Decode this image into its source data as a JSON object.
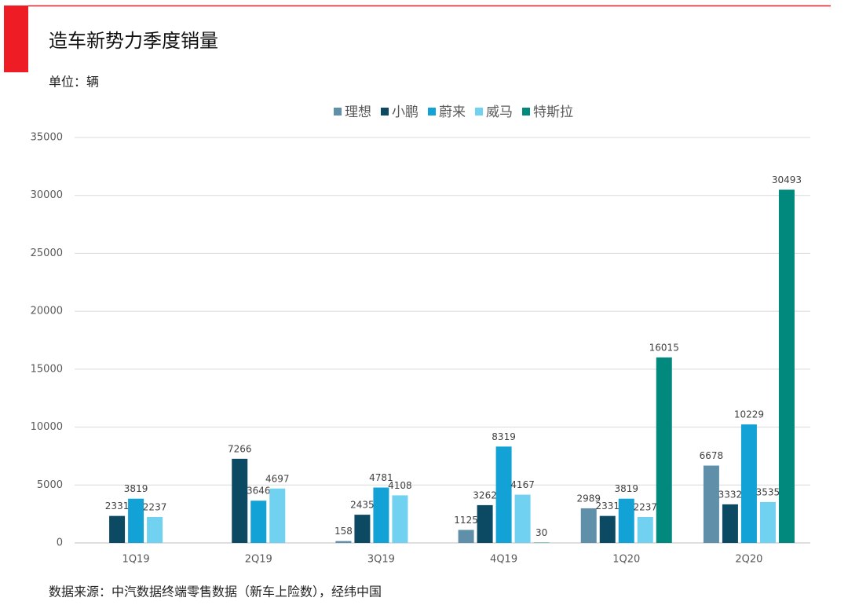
{
  "chart_data": {
    "type": "bar",
    "title": "造车新势力季度销量",
    "subtitle": "单位：辆",
    "source": "数据来源：中汽数据终端零售数据（新车上险数），经纬中国",
    "categories": [
      "1Q19",
      "2Q19",
      "3Q19",
      "4Q19",
      "1Q20",
      "2Q20"
    ],
    "series": [
      {
        "name": "理想",
        "color": "#5f8fa9",
        "values": [
          null,
          null,
          158,
          1125,
          2989,
          6678
        ]
      },
      {
        "name": "小鹏",
        "color": "#0c4a64",
        "values": [
          2331,
          7266,
          2435,
          3262,
          2331,
          3332
        ]
      },
      {
        "name": "蔚来",
        "color": "#13a2d6",
        "values": [
          3819,
          3646,
          4781,
          8319,
          3819,
          10229
        ]
      },
      {
        "name": "威马",
        "color": "#70d1f1",
        "values": [
          2237,
          4697,
          4108,
          4167,
          2237,
          3535
        ]
      },
      {
        "name": "特斯拉",
        "color": "#00897c",
        "values": [
          null,
          null,
          null,
          30,
          16015,
          30493
        ]
      }
    ],
    "ylim": [
      0,
      35000
    ],
    "yticks": [
      0,
      5000,
      10000,
      15000,
      20000,
      25000,
      30000,
      35000
    ],
    "grid": true,
    "legend": "top"
  }
}
